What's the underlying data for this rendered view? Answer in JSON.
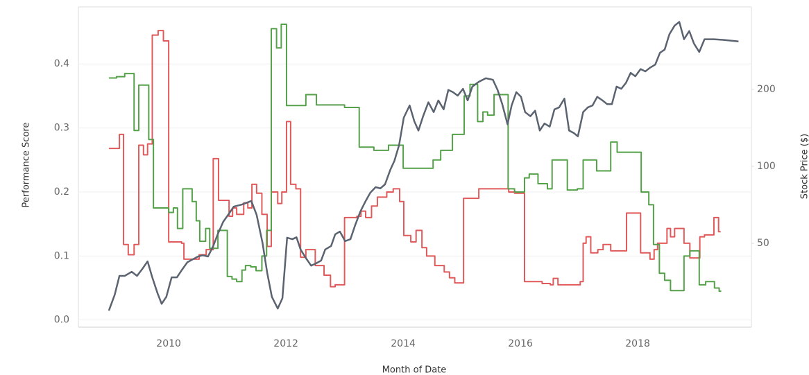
{
  "chart_data": {
    "type": "line",
    "x_label": "Month of Date",
    "y_label": "Performance Score",
    "y2_label": "Stock Price ($)",
    "xlim": [
      2008.46,
      2019.94
    ],
    "xticks": [
      2010,
      2012,
      2014,
      2016,
      2018
    ],
    "ylim": [
      -0.009,
      0.489
    ],
    "yticks": [
      {
        "value": 0,
        "label": "0.0"
      },
      0.1,
      0.2,
      0.3,
      0.4
    ],
    "y2lim": [
      23.8,
      420
    ],
    "y2ticks": [
      50,
      100,
      200
    ],
    "y2_log": true,
    "grid": true,
    "series": [
      {
        "color": "#e05a5c",
        "step": true,
        "axis": "y",
        "x": [
          2008.98,
          2009.16,
          2009.23,
          2009.31,
          2009.41,
          2009.49,
          2009.57,
          2009.64,
          2009.72,
          2009.82,
          2009.91,
          2010.0,
          2010.22,
          2010.26,
          2010.52,
          2010.64,
          2010.76,
          2010.85,
          2011.03,
          2011.09,
          2011.16,
          2011.28,
          2011.35,
          2011.42,
          2011.5,
          2011.59,
          2011.68,
          2011.75,
          2011.86,
          2011.93,
          2012.01,
          2012.08,
          2012.17,
          2012.25,
          2012.34,
          2012.5,
          2012.65,
          2012.76,
          2012.84,
          2013.0,
          2013.21,
          2013.28,
          2013.36,
          2013.46,
          2013.56,
          2013.72,
          2013.83,
          2013.94,
          2014.01,
          2014.13,
          2014.22,
          2014.32,
          2014.4,
          2014.54,
          2014.7,
          2014.79,
          2014.88,
          2015.03,
          2015.29,
          2015.8,
          2015.9,
          2016.07,
          2016.37,
          2016.51,
          2016.56,
          2016.64,
          2017.02,
          2017.07,
          2017.12,
          2017.2,
          2017.32,
          2017.41,
          2017.54,
          2017.81,
          2018.05,
          2018.21,
          2018.28,
          2018.34,
          2018.5,
          2018.56,
          2018.63,
          2018.79,
          2018.89,
          2019.06,
          2019.14,
          2019.3,
          2019.38
        ],
        "values": [
          0.268,
          0.29,
          0.118,
          0.102,
          0.118,
          0.273,
          0.258,
          0.275,
          0.445,
          0.452,
          0.436,
          0.122,
          0.12,
          0.095,
          0.102,
          0.11,
          0.252,
          0.187,
          0.162,
          0.175,
          0.165,
          0.183,
          0.175,
          0.212,
          0.198,
          0.165,
          0.115,
          0.2,
          0.182,
          0.2,
          0.31,
          0.212,
          0.205,
          0.098,
          0.11,
          0.085,
          0.07,
          0.052,
          0.055,
          0.16,
          0.162,
          0.17,
          0.16,
          0.178,
          0.192,
          0.2,
          0.205,
          0.185,
          0.132,
          0.122,
          0.14,
          0.113,
          0.1,
          0.085,
          0.075,
          0.066,
          0.058,
          0.19,
          0.205,
          0.2,
          0.198,
          0.06,
          0.057,
          0.055,
          0.065,
          0.055,
          0.06,
          0.12,
          0.13,
          0.105,
          0.11,
          0.118,
          0.108,
          0.167,
          0.105,
          0.095,
          0.11,
          0.12,
          0.143,
          0.13,
          0.143,
          0.12,
          0.097,
          0.13,
          0.133,
          0.16,
          0.138
        ]
      },
      {
        "color": "#55a14a",
        "step": true,
        "axis": "y",
        "x": [
          2008.98,
          2009.11,
          2009.25,
          2009.41,
          2009.49,
          2009.66,
          2009.74,
          2010.0,
          2010.08,
          2010.15,
          2010.24,
          2010.4,
          2010.47,
          2010.53,
          2010.63,
          2010.7,
          2010.84,
          2011.0,
          2011.08,
          2011.16,
          2011.25,
          2011.31,
          2011.4,
          2011.49,
          2011.59,
          2011.67,
          2011.75,
          2011.84,
          2011.92,
          2012.01,
          2012.34,
          2012.52,
          2013.0,
          2013.25,
          2013.5,
          2013.75,
          2014.0,
          2014.51,
          2014.64,
          2014.84,
          2015.04,
          2015.14,
          2015.27,
          2015.36,
          2015.44,
          2015.55,
          2015.79,
          2015.9,
          2016.07,
          2016.15,
          2016.3,
          2016.46,
          2016.54,
          2016.8,
          2016.97,
          2017.07,
          2017.3,
          2017.54,
          2017.65,
          2018.06,
          2018.19,
          2018.27,
          2018.37,
          2018.46,
          2018.56,
          2018.79,
          2018.89,
          2019.05,
          2019.16,
          2019.31,
          2019.39
        ],
        "values": [
          0.378,
          0.38,
          0.385,
          0.296,
          0.367,
          0.282,
          0.175,
          0.168,
          0.175,
          0.143,
          0.205,
          0.185,
          0.155,
          0.123,
          0.143,
          0.112,
          0.14,
          0.068,
          0.064,
          0.06,
          0.078,
          0.085,
          0.083,
          0.077,
          0.1,
          0.14,
          0.455,
          0.425,
          0.462,
          0.335,
          0.352,
          0.336,
          0.332,
          0.27,
          0.265,
          0.273,
          0.237,
          0.25,
          0.265,
          0.29,
          0.35,
          0.368,
          0.31,
          0.325,
          0.32,
          0.352,
          0.205,
          0.2,
          0.222,
          0.228,
          0.213,
          0.205,
          0.25,
          0.203,
          0.205,
          0.25,
          0.233,
          0.278,
          0.262,
          0.2,
          0.18,
          0.118,
          0.073,
          0.062,
          0.046,
          0.1,
          0.108,
          0.055,
          0.06,
          0.05,
          0.045
        ]
      },
      {
        "color": "#5b6370",
        "step": false,
        "axis": "y2",
        "x": [
          2008.98,
          2009.08,
          2009.16,
          2009.25,
          2009.37,
          2009.46,
          2009.55,
          2009.64,
          2009.72,
          2009.81,
          2009.88,
          2009.96,
          2010.05,
          2010.14,
          2010.22,
          2010.32,
          2010.5,
          2010.58,
          2010.67,
          2010.76,
          2010.84,
          2010.93,
          2011.03,
          2011.11,
          2011.25,
          2011.41,
          2011.5,
          2011.6,
          2011.68,
          2011.76,
          2011.86,
          2011.94,
          2012.02,
          2012.11,
          2012.18,
          2012.25,
          2012.34,
          2012.43,
          2012.51,
          2012.6,
          2012.67,
          2012.77,
          2012.84,
          2012.92,
          2013.01,
          2013.1,
          2013.18,
          2013.27,
          2013.36,
          2013.44,
          2013.53,
          2013.61,
          2013.69,
          2013.78,
          2013.85,
          2013.93,
          2014.01,
          2014.11,
          2014.19,
          2014.26,
          2014.34,
          2014.43,
          2014.52,
          2014.6,
          2014.69,
          2014.77,
          2014.85,
          2014.93,
          2015.02,
          2015.1,
          2015.18,
          2015.29,
          2015.41,
          2015.53,
          2015.61,
          2015.69,
          2015.78,
          2015.85,
          2015.93,
          2016.01,
          2016.08,
          2016.17,
          2016.25,
          2016.33,
          2016.41,
          2016.5,
          2016.58,
          2016.66,
          2016.75,
          2016.83,
          2016.91,
          2016.98,
          2017.07,
          2017.15,
          2017.23,
          2017.31,
          2017.4,
          2017.48,
          2017.56,
          2017.64,
          2017.72,
          2017.8,
          2017.88,
          2017.96,
          2018.05,
          2018.13,
          2018.21,
          2018.3,
          2018.38,
          2018.46,
          2018.54,
          2018.63,
          2018.71,
          2018.79,
          2018.88,
          2018.96,
          2019.05,
          2019.14,
          2019.3,
          2019.47,
          2019.72
        ],
        "values": [
          27.3,
          31.5,
          37.3,
          37.3,
          38.7,
          37.3,
          39.7,
          42.5,
          36.8,
          31.9,
          29.0,
          30.9,
          36.8,
          36.8,
          39.2,
          42.2,
          44.4,
          44.9,
          44.4,
          48.8,
          54.5,
          60.7,
          65.4,
          69.6,
          70.9,
          73.2,
          64.6,
          50.3,
          38.4,
          30.9,
          27.8,
          30.5,
          52.6,
          51.9,
          52.8,
          47.3,
          43.8,
          40.9,
          41.7,
          42.8,
          47.3,
          48.8,
          54.2,
          55.6,
          51.0,
          51.9,
          58.8,
          66.6,
          73.2,
          78.9,
          82.9,
          82.0,
          85.0,
          96.9,
          105,
          121,
          155,
          173,
          150,
          138,
          157,
          178,
          163,
          181,
          167,
          199,
          195,
          189,
          201,
          181,
          205,
          214,
          221,
          218,
          199,
          175,
          146,
          173,
          195,
          187,
          163,
          157,
          165,
          138,
          147,
          143,
          167,
          170,
          184,
          138,
          135,
          131,
          163,
          170,
          173,
          187,
          181,
          175,
          175,
          205,
          201,
          212,
          232,
          225,
          240,
          235,
          243,
          250,
          278,
          286,
          328,
          355,
          367,
          314,
          338,
          302,
          280,
          314,
          314,
          312,
          308
        ]
      }
    ]
  }
}
